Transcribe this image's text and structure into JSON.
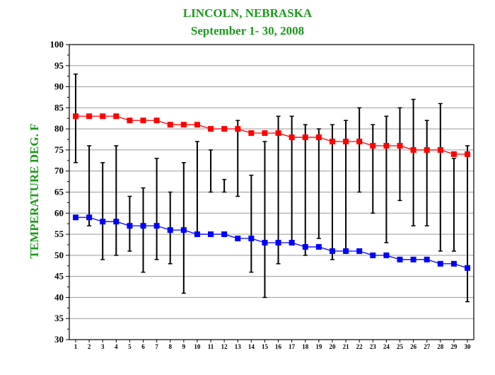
{
  "chart_data": {
    "type": "line",
    "title": "LINCOLN, NEBRASKA",
    "subtitle": "September 1- 30, 2008",
    "ylabel": "TEMPERATURE DEG. F",
    "xlabel": "",
    "ylim": [
      30,
      100
    ],
    "yticks": [
      30,
      35,
      40,
      45,
      50,
      55,
      60,
      65,
      70,
      75,
      80,
      85,
      90,
      95,
      100
    ],
    "x": [
      1,
      2,
      3,
      4,
      5,
      6,
      7,
      8,
      9,
      10,
      11,
      12,
      13,
      14,
      15,
      16,
      17,
      18,
      19,
      20,
      21,
      22,
      23,
      24,
      25,
      26,
      27,
      28,
      29,
      30
    ],
    "grid": true,
    "series": [
      {
        "color": "#ff0000",
        "values": [
          83,
          83,
          83,
          83,
          82,
          82,
          82,
          81,
          81,
          81,
          80,
          80,
          80,
          79,
          79,
          79,
          78,
          78,
          78,
          77,
          77,
          77,
          76,
          76,
          76,
          75,
          75,
          75,
          74,
          74
        ]
      },
      {
        "color": "#0000ff",
        "values": [
          59,
          59,
          58,
          58,
          57,
          57,
          57,
          56,
          56,
          55,
          55,
          55,
          54,
          54,
          53,
          53,
          53,
          52,
          52,
          51,
          51,
          51,
          50,
          50,
          49,
          49,
          49,
          48,
          48,
          47
        ]
      }
    ],
    "observed_range": {
      "color": "#000000",
      "high": [
        93,
        76,
        72,
        76,
        64,
        66,
        73,
        65,
        72,
        77,
        75,
        68,
        82,
        69,
        77,
        83,
        83,
        81,
        80,
        81,
        82,
        85,
        81,
        83,
        85,
        87,
        82,
        86,
        73,
        76
      ],
      "low": [
        72,
        57,
        49,
        50,
        51,
        46,
        49,
        48,
        41,
        55,
        65,
        65,
        64,
        46,
        40,
        48,
        53,
        50,
        54,
        49,
        51,
        65,
        60,
        53,
        63,
        57,
        57,
        51,
        51,
        39
      ]
    }
  }
}
